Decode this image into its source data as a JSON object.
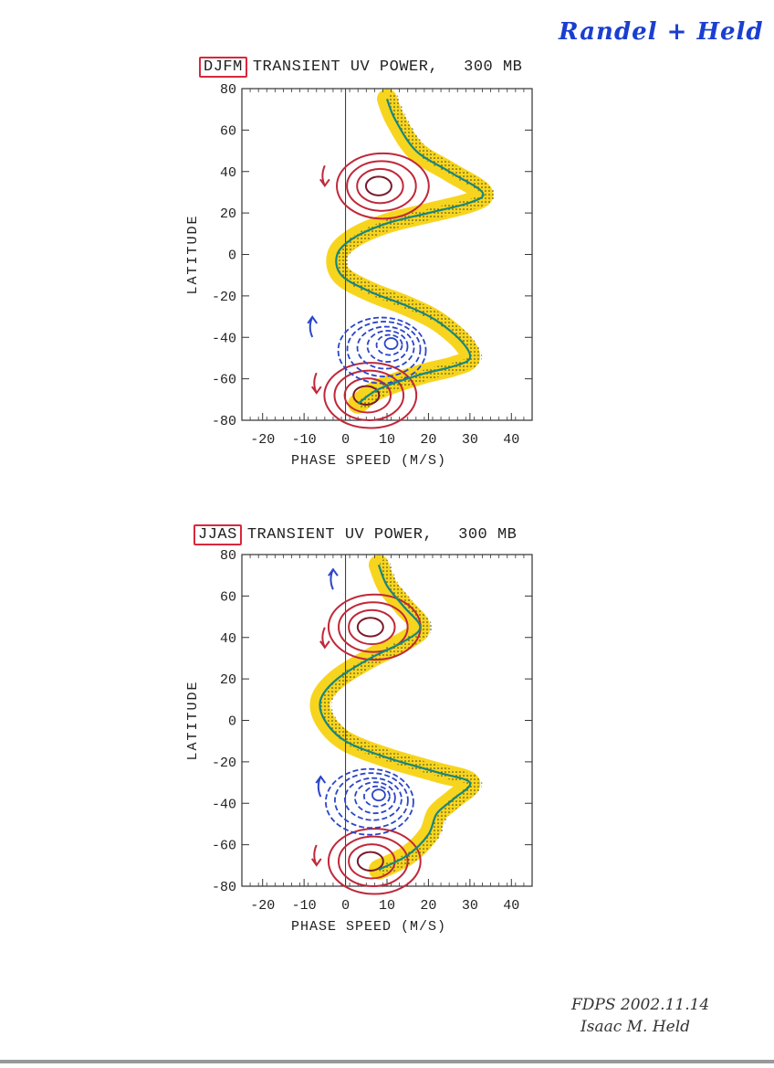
{
  "annotation": {
    "author_note": "Randel + Held",
    "footer_line1": "FDPS 2002.11.14",
    "footer_line2": "Isaac M. Held"
  },
  "panels": [
    {
      "season": "DJFM",
      "title": "TRANSIENT UV POWER,",
      "level": "300 MB"
    },
    {
      "season": "JJAS",
      "title": "TRANSIENT UV POWER,",
      "level": "300 MB"
    }
  ],
  "colors": {
    "shading": "#f7d51e",
    "stipple": "#3a3a1a",
    "curve": "#17877f",
    "positive": "#c0283a",
    "negative": "#2b45c8",
    "highlight_box": "#d8283c"
  },
  "chart_data": [
    {
      "type": "contour",
      "title": "DJFM TRANSIENT UV POWER, 300 MB",
      "xlabel": "PHASE SPEED (M/S)",
      "ylabel": "LATITUDE",
      "xlim": [
        -25,
        45
      ],
      "ylim": [
        -80,
        80
      ],
      "xticks": [
        -20,
        -10,
        0,
        10,
        20,
        30,
        40
      ],
      "yticks": [
        80,
        60,
        40,
        20,
        0,
        -20,
        -40,
        -60,
        -80
      ],
      "xtick_labels": [
        "-20",
        "-10",
        "0",
        "10",
        "20",
        "30",
        "40"
      ],
      "ytick_labels": [
        "80",
        "60",
        "40",
        "20",
        "0",
        "-20",
        "-40",
        "-60",
        "-80"
      ],
      "zonal_wind_curve": [
        [
          10,
          75
        ],
        [
          12,
          65
        ],
        [
          17,
          50
        ],
        [
          25,
          40
        ],
        [
          33,
          30
        ],
        [
          30,
          25
        ],
        [
          20,
          20
        ],
        [
          10,
          15
        ],
        [
          2,
          8
        ],
        [
          -2,
          0
        ],
        [
          -1,
          -10
        ],
        [
          6,
          -18
        ],
        [
          15,
          -25
        ],
        [
          22,
          -32
        ],
        [
          28,
          -42
        ],
        [
          30,
          -50
        ],
        [
          26,
          -54
        ],
        [
          18,
          -58
        ],
        [
          8,
          -65
        ],
        [
          3,
          -72
        ]
      ],
      "positive_centers": [
        {
          "x": 8,
          "y": 33
        },
        {
          "x": 5,
          "y": -68
        }
      ],
      "negative_centers": [
        {
          "x": 11,
          "y": -43
        }
      ],
      "arrows": [
        {
          "x": -5,
          "y": 38,
          "direction": "down",
          "color": "positive"
        },
        {
          "x": -8,
          "y": -35,
          "direction": "up",
          "color": "negative"
        },
        {
          "x": -7,
          "y": -62,
          "direction": "down",
          "color": "positive"
        }
      ]
    },
    {
      "type": "contour",
      "title": "JJAS TRANSIENT UV POWER, 300 MB",
      "xlabel": "PHASE SPEED (M/S)",
      "ylabel": "LATITUDE",
      "xlim": [
        -25,
        45
      ],
      "ylim": [
        -80,
        80
      ],
      "xticks": [
        -20,
        -10,
        0,
        10,
        20,
        30,
        40
      ],
      "yticks": [
        80,
        60,
        40,
        20,
        0,
        -20,
        -40,
        -60,
        -80
      ],
      "xtick_labels": [
        "-20",
        "-10",
        "0",
        "10",
        "20",
        "30",
        "40"
      ],
      "ytick_labels": [
        "80",
        "60",
        "40",
        "20",
        "0",
        "-20",
        "-40",
        "-60",
        "-80"
      ],
      "zonal_wind_curve": [
        [
          8,
          75
        ],
        [
          10,
          65
        ],
        [
          14,
          55
        ],
        [
          18,
          45
        ],
        [
          14,
          38
        ],
        [
          6,
          30
        ],
        [
          -2,
          20
        ],
        [
          -6,
          10
        ],
        [
          -5,
          0
        ],
        [
          0,
          -10
        ],
        [
          10,
          -18
        ],
        [
          22,
          -25
        ],
        [
          30,
          -30
        ],
        [
          26,
          -38
        ],
        [
          22,
          -45
        ],
        [
          20,
          -55
        ],
        [
          15,
          -65
        ],
        [
          8,
          -72
        ]
      ],
      "positive_centers": [
        {
          "x": 6,
          "y": 45
        },
        {
          "x": 6,
          "y": -68
        }
      ],
      "negative_centers": [
        {
          "x": 8,
          "y": -36
        }
      ],
      "arrows": [
        {
          "x": -3,
          "y": 68,
          "direction": "up",
          "color": "negative"
        },
        {
          "x": -5,
          "y": 40,
          "direction": "down",
          "color": "positive"
        },
        {
          "x": -6,
          "y": -32,
          "direction": "up",
          "color": "negative"
        },
        {
          "x": -7,
          "y": -65,
          "direction": "down",
          "color": "positive"
        }
      ]
    }
  ]
}
